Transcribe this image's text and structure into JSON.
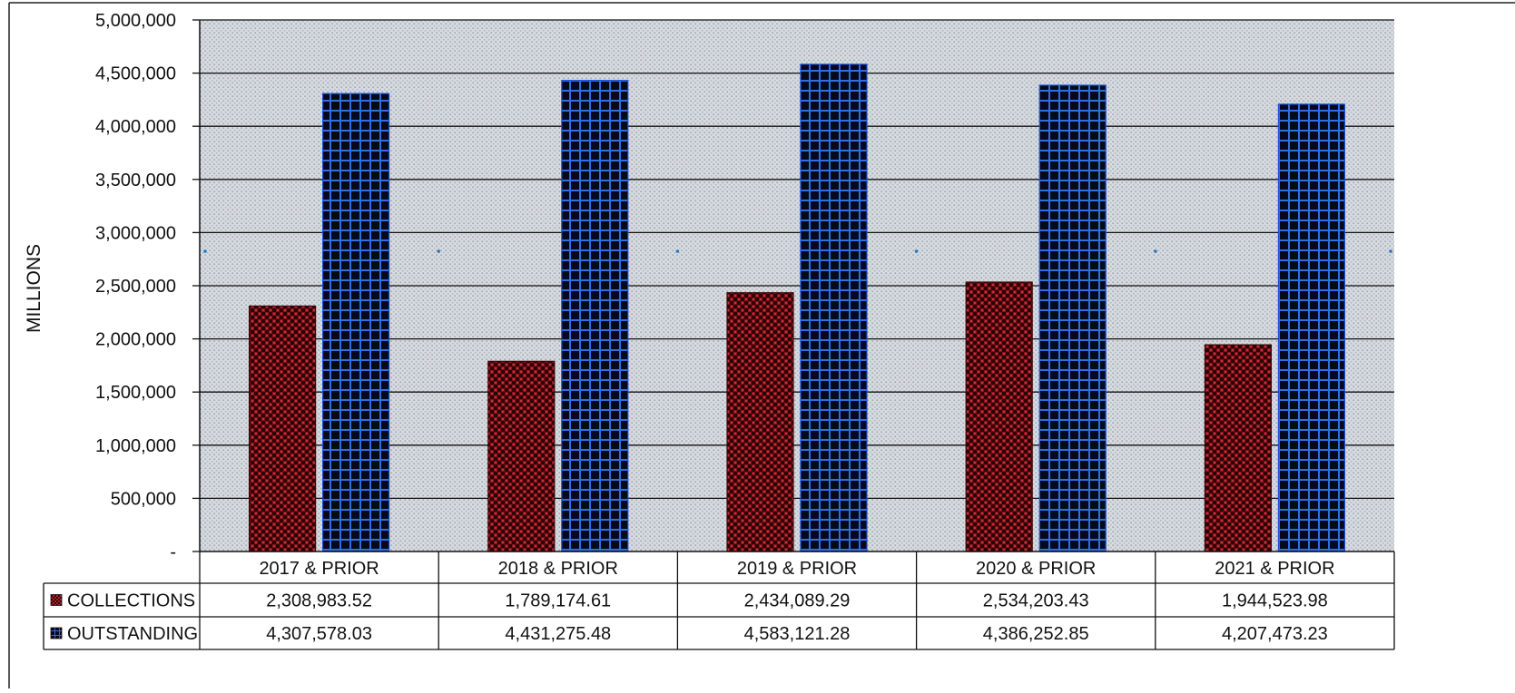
{
  "chart_data": {
    "type": "bar",
    "title": "",
    "xlabel": "",
    "ylabel": "MILLIONS",
    "ylim": [
      0,
      5000000
    ],
    "ytick_values": [
      0,
      500000,
      1000000,
      1500000,
      2000000,
      2500000,
      3000000,
      3500000,
      4000000,
      4500000,
      5000000
    ],
    "ytick_labels": [
      "-",
      "500,000",
      "1,000,000",
      "1,500,000",
      "2,000,000",
      "2,500,000",
      "3,000,000",
      "3,500,000",
      "4,000,000",
      "4,500,000",
      "5,000,000"
    ],
    "grid": true,
    "legend": "data-table",
    "categories": [
      "2017 & PRIOR",
      "2018 & PRIOR",
      "2019 & PRIOR",
      "2020 & PRIOR",
      "2021 & PRIOR"
    ],
    "series": [
      {
        "name": "COLLECTIONS",
        "color": "#b3202a",
        "values": [
          2308983.52,
          1789174.61,
          2434089.29,
          2534203.43,
          1944523.98
        ],
        "labels": [
          "2,308,983.52",
          "1,789,174.61",
          "2,434,089.29",
          "2,534,203.43",
          "1,944,523.98"
        ]
      },
      {
        "name": "OUTSTANDING",
        "color": "#1a4fd6",
        "values": [
          4307578.03,
          4431275.48,
          4583121.28,
          4386252.85,
          4207473.23
        ],
        "labels": [
          "4,307,578.03",
          "4,431,275.48",
          "4,583,121.28",
          "4,386,252.85",
          "4,207,473.23"
        ]
      }
    ]
  }
}
